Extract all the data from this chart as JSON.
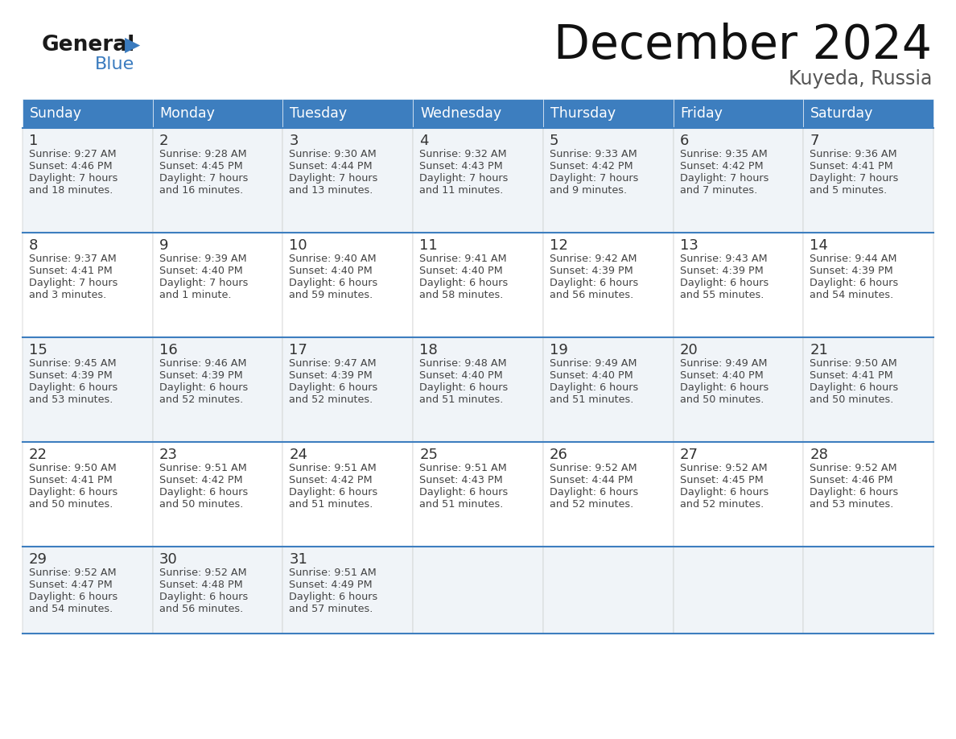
{
  "title": "December 2024",
  "subtitle": "Kuyeda, Russia",
  "header_color": "#3d7ebf",
  "header_text_color": "#ffffff",
  "day_names": [
    "Sunday",
    "Monday",
    "Tuesday",
    "Wednesday",
    "Thursday",
    "Friday",
    "Saturday"
  ],
  "background_color": "#ffffff",
  "cell_bg_even": "#f0f4f8",
  "cell_bg_odd": "#ffffff",
  "border_color": "#3d7ebf",
  "day_num_color": "#333333",
  "text_color": "#444444",
  "logo_general_color": "#1a1a1a",
  "logo_blue_color": "#3a7bbf",
  "days": [
    {
      "day": 1,
      "col": 0,
      "row": 0,
      "sunrise": "9:27 AM",
      "sunset": "4:46 PM",
      "daylight": "7 hours and 18 minutes."
    },
    {
      "day": 2,
      "col": 1,
      "row": 0,
      "sunrise": "9:28 AM",
      "sunset": "4:45 PM",
      "daylight": "7 hours and 16 minutes."
    },
    {
      "day": 3,
      "col": 2,
      "row": 0,
      "sunrise": "9:30 AM",
      "sunset": "4:44 PM",
      "daylight": "7 hours and 13 minutes."
    },
    {
      "day": 4,
      "col": 3,
      "row": 0,
      "sunrise": "9:32 AM",
      "sunset": "4:43 PM",
      "daylight": "7 hours and 11 minutes."
    },
    {
      "day": 5,
      "col": 4,
      "row": 0,
      "sunrise": "9:33 AM",
      "sunset": "4:42 PM",
      "daylight": "7 hours and 9 minutes."
    },
    {
      "day": 6,
      "col": 5,
      "row": 0,
      "sunrise": "9:35 AM",
      "sunset": "4:42 PM",
      "daylight": "7 hours and 7 minutes."
    },
    {
      "day": 7,
      "col": 6,
      "row": 0,
      "sunrise": "9:36 AM",
      "sunset": "4:41 PM",
      "daylight": "7 hours and 5 minutes."
    },
    {
      "day": 8,
      "col": 0,
      "row": 1,
      "sunrise": "9:37 AM",
      "sunset": "4:41 PM",
      "daylight": "7 hours and 3 minutes."
    },
    {
      "day": 9,
      "col": 1,
      "row": 1,
      "sunrise": "9:39 AM",
      "sunset": "4:40 PM",
      "daylight": "7 hours and 1 minute."
    },
    {
      "day": 10,
      "col": 2,
      "row": 1,
      "sunrise": "9:40 AM",
      "sunset": "4:40 PM",
      "daylight": "6 hours and 59 minutes."
    },
    {
      "day": 11,
      "col": 3,
      "row": 1,
      "sunrise": "9:41 AM",
      "sunset": "4:40 PM",
      "daylight": "6 hours and 58 minutes."
    },
    {
      "day": 12,
      "col": 4,
      "row": 1,
      "sunrise": "9:42 AM",
      "sunset": "4:39 PM",
      "daylight": "6 hours and 56 minutes."
    },
    {
      "day": 13,
      "col": 5,
      "row": 1,
      "sunrise": "9:43 AM",
      "sunset": "4:39 PM",
      "daylight": "6 hours and 55 minutes."
    },
    {
      "day": 14,
      "col": 6,
      "row": 1,
      "sunrise": "9:44 AM",
      "sunset": "4:39 PM",
      "daylight": "6 hours and 54 minutes."
    },
    {
      "day": 15,
      "col": 0,
      "row": 2,
      "sunrise": "9:45 AM",
      "sunset": "4:39 PM",
      "daylight": "6 hours and 53 minutes."
    },
    {
      "day": 16,
      "col": 1,
      "row": 2,
      "sunrise": "9:46 AM",
      "sunset": "4:39 PM",
      "daylight": "6 hours and 52 minutes."
    },
    {
      "day": 17,
      "col": 2,
      "row": 2,
      "sunrise": "9:47 AM",
      "sunset": "4:39 PM",
      "daylight": "6 hours and 52 minutes."
    },
    {
      "day": 18,
      "col": 3,
      "row": 2,
      "sunrise": "9:48 AM",
      "sunset": "4:40 PM",
      "daylight": "6 hours and 51 minutes."
    },
    {
      "day": 19,
      "col": 4,
      "row": 2,
      "sunrise": "9:49 AM",
      "sunset": "4:40 PM",
      "daylight": "6 hours and 51 minutes."
    },
    {
      "day": 20,
      "col": 5,
      "row": 2,
      "sunrise": "9:49 AM",
      "sunset": "4:40 PM",
      "daylight": "6 hours and 50 minutes."
    },
    {
      "day": 21,
      "col": 6,
      "row": 2,
      "sunrise": "9:50 AM",
      "sunset": "4:41 PM",
      "daylight": "6 hours and 50 minutes."
    },
    {
      "day": 22,
      "col": 0,
      "row": 3,
      "sunrise": "9:50 AM",
      "sunset": "4:41 PM",
      "daylight": "6 hours and 50 minutes."
    },
    {
      "day": 23,
      "col": 1,
      "row": 3,
      "sunrise": "9:51 AM",
      "sunset": "4:42 PM",
      "daylight": "6 hours and 50 minutes."
    },
    {
      "day": 24,
      "col": 2,
      "row": 3,
      "sunrise": "9:51 AM",
      "sunset": "4:42 PM",
      "daylight": "6 hours and 51 minutes."
    },
    {
      "day": 25,
      "col": 3,
      "row": 3,
      "sunrise": "9:51 AM",
      "sunset": "4:43 PM",
      "daylight": "6 hours and 51 minutes."
    },
    {
      "day": 26,
      "col": 4,
      "row": 3,
      "sunrise": "9:52 AM",
      "sunset": "4:44 PM",
      "daylight": "6 hours and 52 minutes."
    },
    {
      "day": 27,
      "col": 5,
      "row": 3,
      "sunrise": "9:52 AM",
      "sunset": "4:45 PM",
      "daylight": "6 hours and 52 minutes."
    },
    {
      "day": 28,
      "col": 6,
      "row": 3,
      "sunrise": "9:52 AM",
      "sunset": "4:46 PM",
      "daylight": "6 hours and 53 minutes."
    },
    {
      "day": 29,
      "col": 0,
      "row": 4,
      "sunrise": "9:52 AM",
      "sunset": "4:47 PM",
      "daylight": "6 hours and 54 minutes."
    },
    {
      "day": 30,
      "col": 1,
      "row": 4,
      "sunrise": "9:52 AM",
      "sunset": "4:48 PM",
      "daylight": "6 hours and 56 minutes."
    },
    {
      "day": 31,
      "col": 2,
      "row": 4,
      "sunrise": "9:51 AM",
      "sunset": "4:49 PM",
      "daylight": "6 hours and 57 minutes."
    }
  ]
}
